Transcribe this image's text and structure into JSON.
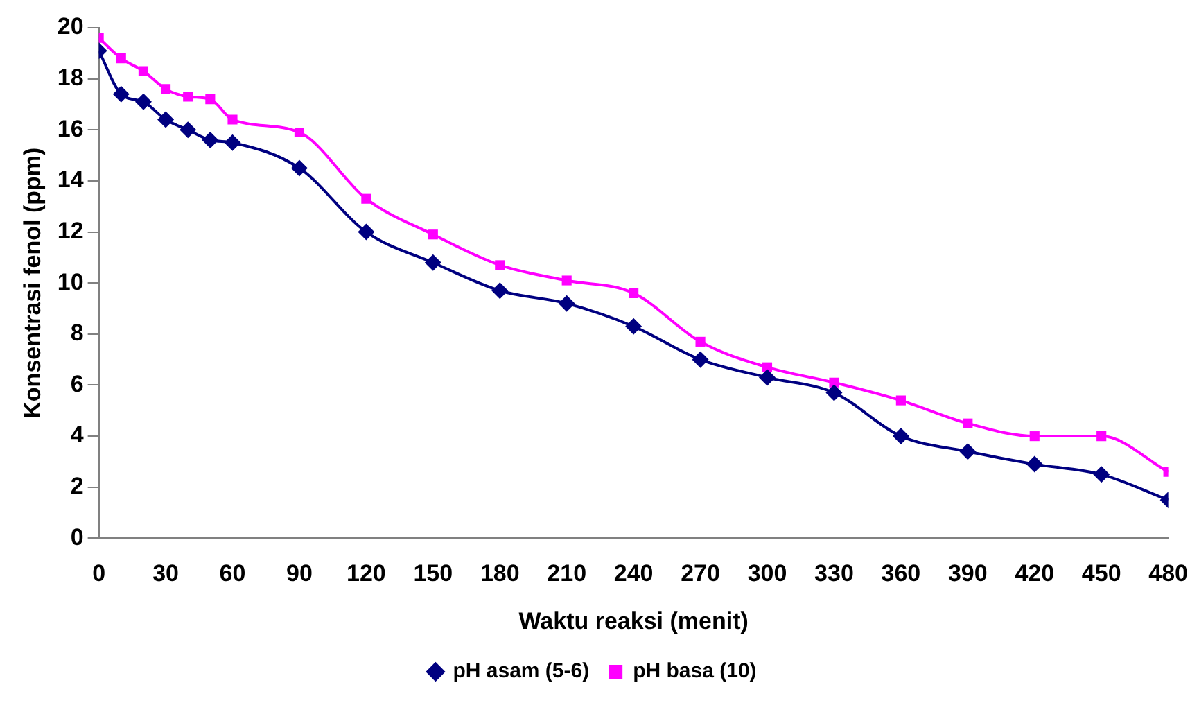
{
  "chart_data": {
    "type": "line",
    "xlabel": "Waktu reaksi (menit)",
    "ylabel": "Konsentrasi fenol (ppm)",
    "x": [
      0,
      10,
      20,
      30,
      40,
      50,
      60,
      90,
      120,
      150,
      180,
      210,
      240,
      270,
      300,
      330,
      360,
      390,
      420,
      450,
      480
    ],
    "series": [
      {
        "name": "pH asam (5-6)",
        "color": "#000080",
        "marker": "diamond",
        "values": [
          19.1,
          17.4,
          17.1,
          16.4,
          16.0,
          15.6,
          15.5,
          14.5,
          12.0,
          10.8,
          9.7,
          9.2,
          8.3,
          7.0,
          6.3,
          5.7,
          4.0,
          3.4,
          2.9,
          2.5,
          1.5
        ]
      },
      {
        "name": "pH basa (10)",
        "color": "#ff00ff",
        "marker": "square",
        "values": [
          19.6,
          18.8,
          18.3,
          17.6,
          17.3,
          17.2,
          16.4,
          15.9,
          13.3,
          11.9,
          10.7,
          10.1,
          9.6,
          7.7,
          6.7,
          6.1,
          5.4,
          4.5,
          4.0,
          4.0,
          2.6
        ]
      }
    ],
    "xlim": [
      0,
      480
    ],
    "xticks": [
      0,
      30,
      60,
      90,
      120,
      150,
      180,
      210,
      240,
      270,
      300,
      330,
      360,
      390,
      420,
      450,
      480
    ],
    "ylim": [
      0,
      20
    ],
    "yticks": [
      0,
      2,
      4,
      6,
      8,
      10,
      12,
      14,
      16,
      18,
      20
    ],
    "grid": false,
    "legend": "bottom"
  }
}
